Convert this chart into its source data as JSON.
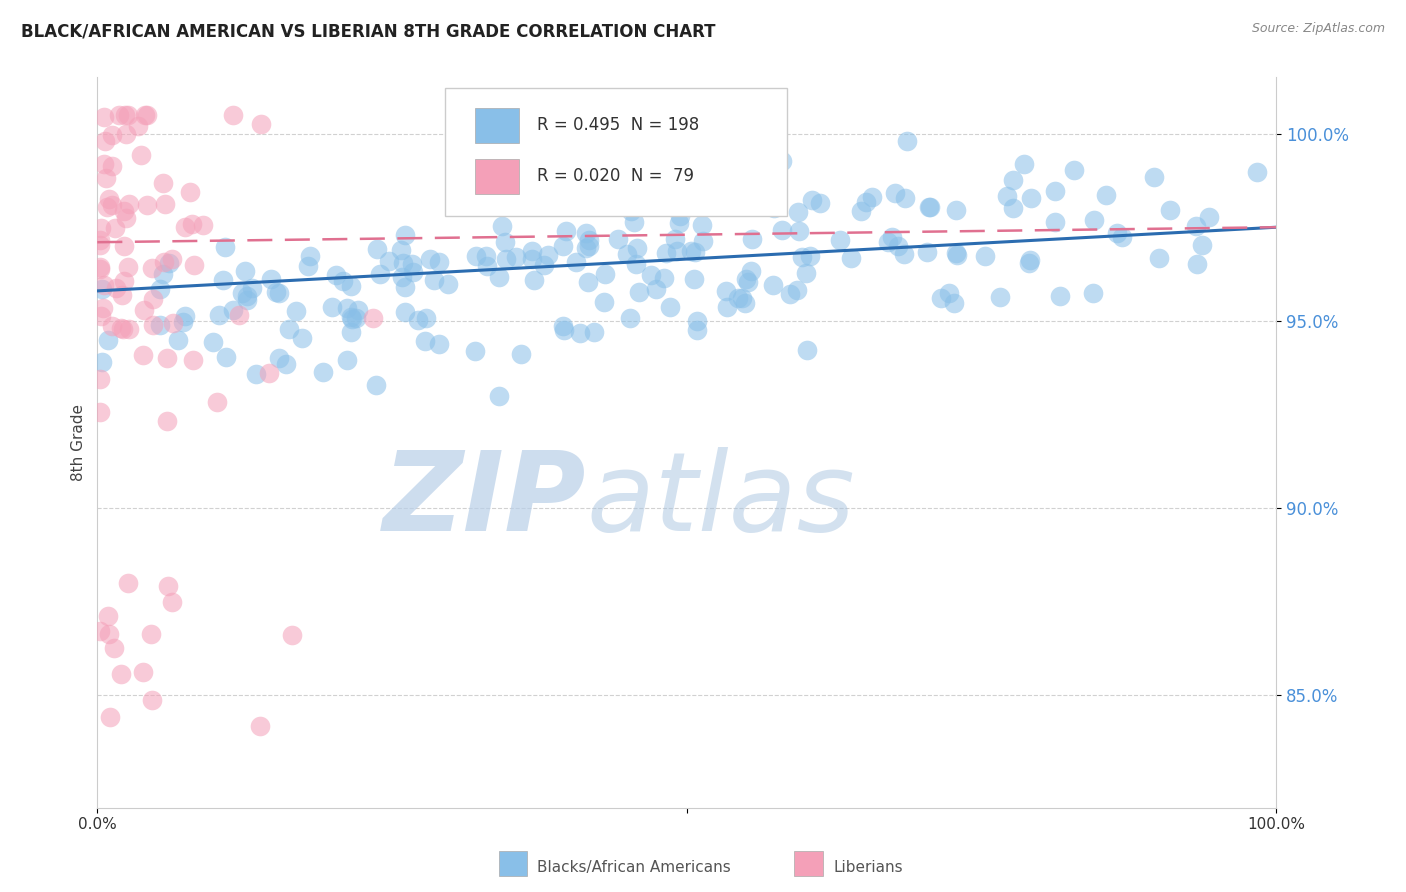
{
  "title": "BLACK/AFRICAN AMERICAN VS LIBERIAN 8TH GRADE CORRELATION CHART",
  "source": "Source: ZipAtlas.com",
  "ylabel": "8th Grade",
  "blue_label": "Blacks/African Americans",
  "pink_label": "Liberians",
  "blue_R": 0.495,
  "blue_N": 198,
  "pink_R": 0.02,
  "pink_N": 79,
  "xlim": [
    0.0,
    100.0
  ],
  "ylim": [
    82.0,
    101.5
  ],
  "yticks": [
    85.0,
    90.0,
    95.0,
    100.0
  ],
  "ytick_labels": [
    "85.0%",
    "90.0%",
    "95.0%",
    "100.0%"
  ],
  "blue_color": "#89bfe8",
  "pink_color": "#f4a0b8",
  "blue_line_color": "#2b6cb0",
  "pink_line_color": "#e07090",
  "blue_line_start": 95.8,
  "blue_line_end": 97.5,
  "pink_line_start": 97.1,
  "pink_line_end": 97.5
}
